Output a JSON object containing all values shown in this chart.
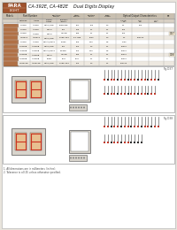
{
  "bg_color": "#e8e4dc",
  "page_bg": "#ffffff",
  "title": "CA-392E, CA-482E    Dual Digits Display",
  "logo_bg": "#a0522d",
  "logo_border": "#6b3412",
  "logo_inner_line": "#c8a882",
  "red_color": "#cc3322",
  "dark_color": "#333333",
  "gray_color": "#888888",
  "light_gray": "#cccccc",
  "table_header_bg": "#c8bfb0",
  "table_alt_bg": "#ede8e0",
  "drawing_border": "#999999",
  "footer_line1": "1. All dimensions are in millimeters (inches).",
  "footer_line2": "2. Tolerance is ±0.25 unless otherwise specified.",
  "fig_label_color": "#555555",
  "pin_colors_d37_top": [
    1,
    0,
    1,
    1,
    0,
    1,
    1,
    0,
    1,
    1,
    0,
    1,
    1,
    0,
    1,
    1,
    0,
    1
  ],
  "pin_colors_d37_bot": [
    1,
    0,
    1,
    1,
    0,
    1,
    1,
    0,
    1,
    1,
    0,
    1,
    1,
    0,
    1,
    1,
    0,
    1
  ],
  "pin_colors_d38_top": [
    1,
    1,
    0,
    1,
    1,
    0,
    1,
    1,
    0,
    1,
    1,
    0,
    1,
    1,
    0,
    1,
    1,
    0
  ],
  "pin_colors_d38_bot": [
    1,
    1,
    0,
    1,
    1,
    0,
    1,
    1,
    0,
    1,
    0,
    0,
    0,
    0,
    0,
    0,
    0,
    0
  ]
}
